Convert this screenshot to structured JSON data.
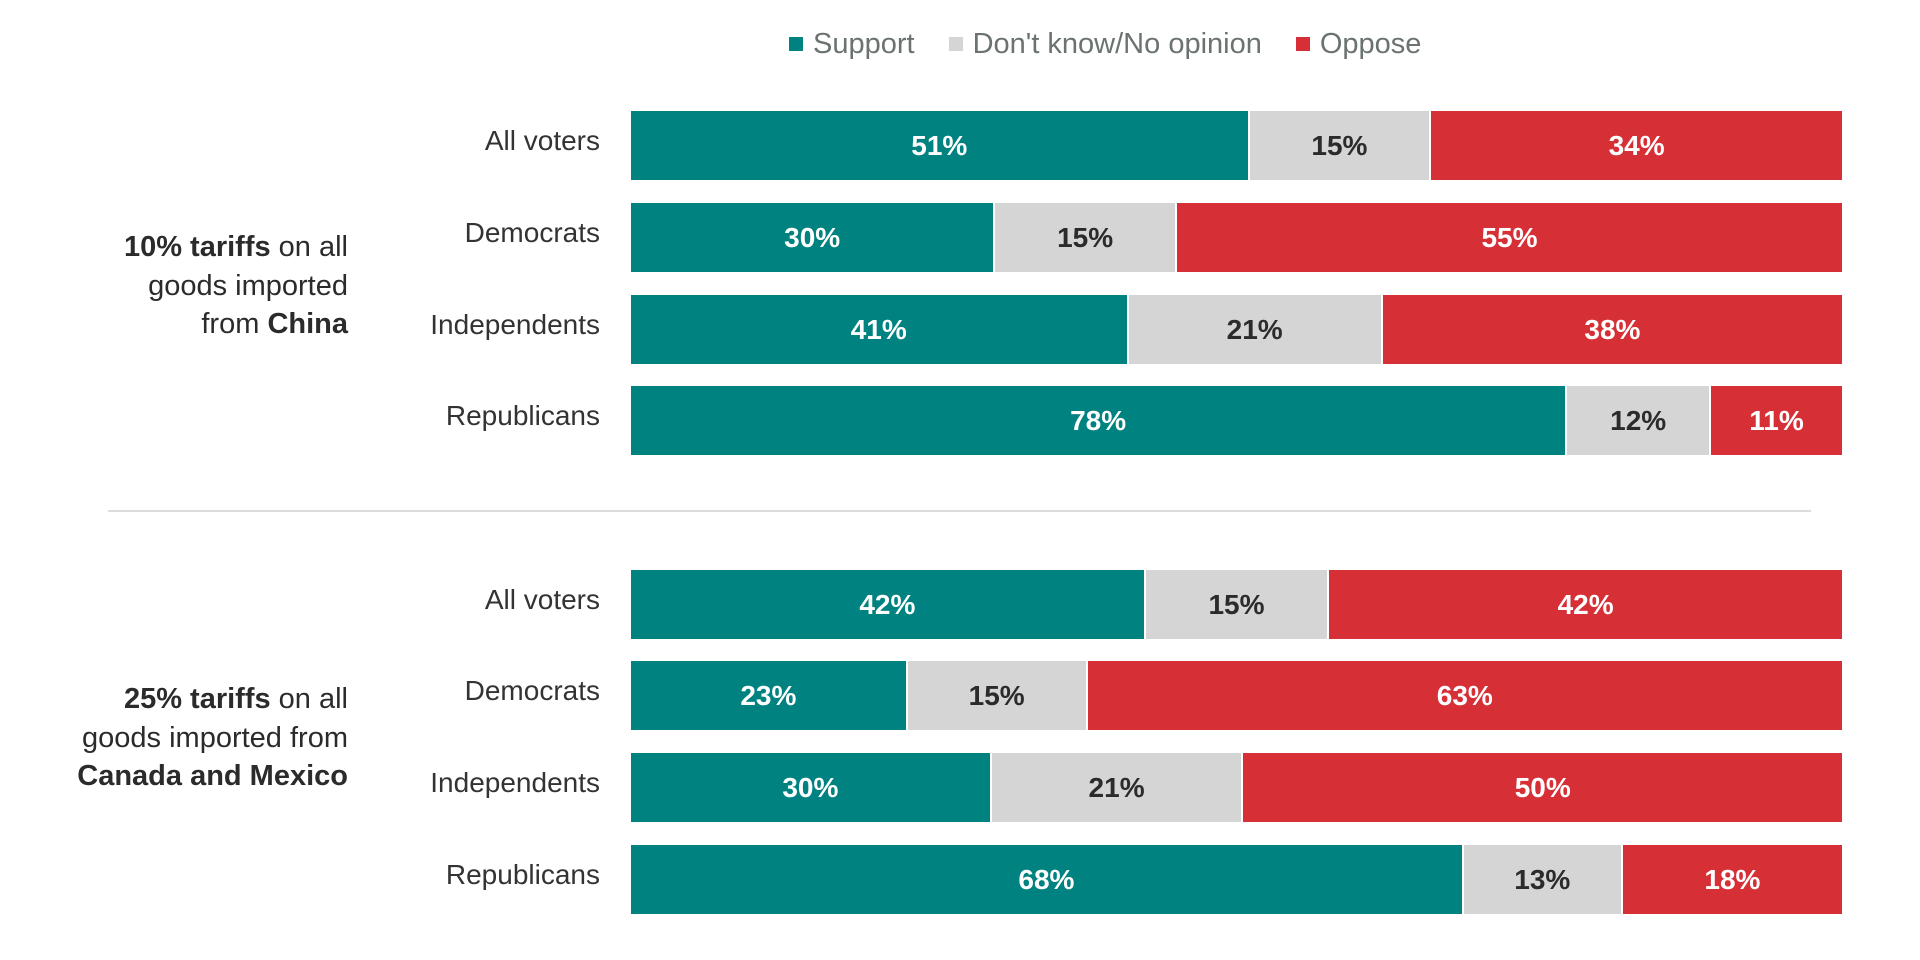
{
  "legend": [
    {
      "label": "Support",
      "color": "#008380"
    },
    {
      "label": "Don't know/No opinion",
      "color": "#d5d5d5"
    },
    {
      "label": "Oppose",
      "color": "#d62f36"
    }
  ],
  "colors": {
    "support": "#008380",
    "dontknow": "#d5d5d5",
    "oppose": "#d62f36",
    "text_light": "#ffffff",
    "text_dark": "#2b2b2b"
  },
  "groups": [
    {
      "label_parts": [
        {
          "text": "10% tariffs",
          "bold": true
        },
        {
          "text": " on all",
          "bold": false
        },
        {
          "text": "goods imported",
          "bold": false,
          "break_before": true
        },
        {
          "text": "from ",
          "bold": false,
          "break_before": true
        },
        {
          "text": "China",
          "bold": true
        }
      ]
    },
    {
      "label_parts": [
        {
          "text": "25% tariffs",
          "bold": true
        },
        {
          "text": " on all",
          "bold": false
        },
        {
          "text": "goods imported from",
          "bold": false,
          "break_before": true
        },
        {
          "text": "Canada and Mexico",
          "bold": true,
          "break_before": true
        }
      ]
    }
  ],
  "chart_data": {
    "type": "bar",
    "orientation": "horizontal-stacked",
    "series_names": [
      "Support",
      "Don't know/No opinion",
      "Oppose"
    ],
    "panels": [
      {
        "title": "10% tariffs on all goods imported from China",
        "categories": [
          "All voters",
          "Democrats",
          "Independents",
          "Republicans"
        ],
        "series": [
          {
            "name": "Support",
            "values": [
              51,
              30,
              41,
              78
            ]
          },
          {
            "name": "Don't know/No opinion",
            "values": [
              15,
              15,
              21,
              12
            ]
          },
          {
            "name": "Oppose",
            "values": [
              34,
              55,
              38,
              11
            ]
          }
        ],
        "labels": [
          [
            "51%",
            "15%",
            "34%"
          ],
          [
            "30%",
            "15%",
            "55%"
          ],
          [
            "41%",
            "21%",
            "38%"
          ],
          [
            "78%",
            "12%",
            "11%"
          ]
        ]
      },
      {
        "title": "25% tariffs on all goods imported from Canada and Mexico",
        "categories": [
          "All voters",
          "Democrats",
          "Independents",
          "Republicans"
        ],
        "series": [
          {
            "name": "Support",
            "values": [
              42,
              23,
              30,
              68
            ]
          },
          {
            "name": "Don't know/No opinion",
            "values": [
              15,
              15,
              21,
              13
            ]
          },
          {
            "name": "Oppose",
            "values": [
              42,
              63,
              50,
              18
            ]
          }
        ],
        "labels": [
          [
            "42%",
            "15%",
            "42%"
          ],
          [
            "23%",
            "15%",
            "63%"
          ],
          [
            "30%",
            "21%",
            "50%"
          ],
          [
            "68%",
            "13%",
            "18%"
          ]
        ]
      }
    ],
    "xlim": [
      0,
      100
    ],
    "grid": false,
    "legend_position": "top"
  }
}
